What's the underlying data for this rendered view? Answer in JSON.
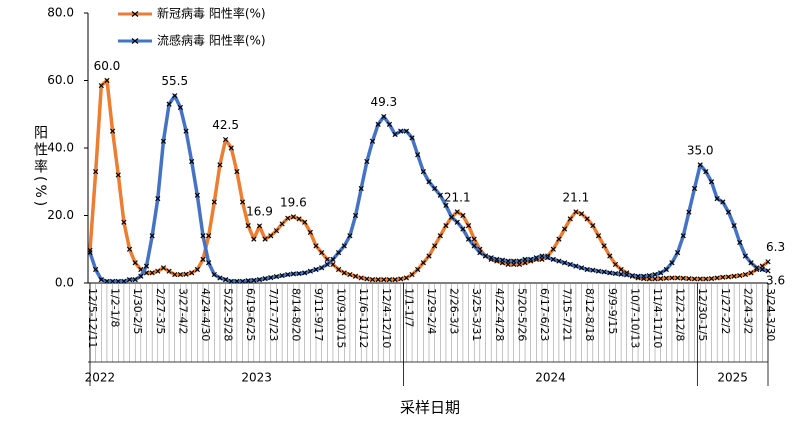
{
  "chart_data": {
    "type": "line",
    "x_label": "采样日期",
    "y_label": "阳性率(%)",
    "categories": [
      "12/5-12/11",
      null,
      null,
      null,
      "1/2-1/8",
      null,
      null,
      null,
      "1/30-2/5",
      null,
      null,
      null,
      "2/27-3/5",
      null,
      null,
      null,
      "3/27-4/2",
      null,
      null,
      null,
      "4/24-4/30",
      null,
      null,
      null,
      "5/22-5/28",
      null,
      null,
      null,
      "6/19-6/25",
      null,
      null,
      null,
      "7/17-7/23",
      null,
      null,
      null,
      "8/14-8/20",
      null,
      null,
      null,
      "9/11-9/17",
      null,
      null,
      null,
      "10/9-10/15",
      null,
      null,
      null,
      "11/6-11/12",
      null,
      null,
      null,
      "12/4-12/10",
      null,
      null,
      null,
      "1/1-1/7",
      null,
      null,
      null,
      "1/29-2/4",
      null,
      null,
      null,
      "2/26-3/3",
      null,
      null,
      null,
      "3/25-3/31",
      null,
      null,
      null,
      "4/22-4/28",
      null,
      null,
      null,
      "5/20-5/26",
      null,
      null,
      null,
      "6/17-6/23",
      null,
      null,
      null,
      "7/15-7/21",
      null,
      null,
      null,
      "8/12-8/18",
      null,
      null,
      null,
      "9/9-9/15",
      null,
      null,
      null,
      "10/7-10/13",
      null,
      null,
      null,
      "11/4-11/10",
      null,
      null,
      null,
      "12/2-12/8",
      null,
      null,
      null,
      "12/30-1/5",
      null,
      null,
      null,
      "1/27-2/2",
      null,
      null,
      null,
      "2/24-3/2",
      null,
      null,
      null,
      "3/24-3/30"
    ],
    "years": [
      "2022",
      "2023",
      "2024",
      "2025"
    ],
    "series": [
      {
        "name": "新冠病毒 阳性率(%)",
        "color": "#ED7D31",
        "values": [
          9.7,
          33,
          58.5,
          60,
          45,
          32,
          18,
          10,
          6,
          4,
          3,
          3,
          3.5,
          4.5,
          3.5,
          2.5,
          2.5,
          2.6,
          3,
          4,
          7,
          14,
          24,
          35,
          42.5,
          40,
          33,
          24,
          17,
          13,
          16.9,
          13,
          14,
          15.5,
          17.5,
          19.2,
          19.6,
          19,
          18,
          15,
          11,
          9,
          7,
          5.5,
          4,
          3,
          2.5,
          2,
          1.5,
          1.2,
          1,
          1,
          1,
          1,
          1,
          1.2,
          1.5,
          2.5,
          4,
          6,
          8,
          11,
          14,
          17,
          19.5,
          21.1,
          20,
          17,
          13,
          10,
          8,
          7,
          6.5,
          6,
          5.5,
          5.5,
          5.5,
          6,
          6.5,
          7,
          7,
          8,
          10,
          13,
          16,
          19,
          21.1,
          20.5,
          19,
          17,
          14,
          11,
          8,
          5.5,
          4,
          3,
          2,
          1.5,
          1.3,
          1.2,
          1.2,
          1.3,
          1.4,
          1.5,
          1.5,
          1.4,
          1.3,
          1.2,
          1.2,
          1.2,
          1.3,
          1.5,
          1.7,
          1.8,
          2,
          2.2,
          2.5,
          3,
          4,
          5,
          6.3
        ],
        "value_labels": [
          null,
          null,
          null,
          "60.0",
          null,
          null,
          null,
          null,
          null,
          null,
          null,
          null,
          null,
          null,
          null,
          null,
          null,
          null,
          null,
          null,
          null,
          null,
          null,
          null,
          "42.5",
          null,
          null,
          null,
          null,
          null,
          "16.9",
          null,
          null,
          null,
          null,
          null,
          "19.6",
          null,
          null,
          null,
          null,
          null,
          null,
          null,
          null,
          null,
          null,
          null,
          null,
          null,
          null,
          null,
          null,
          null,
          null,
          null,
          null,
          null,
          null,
          null,
          null,
          null,
          null,
          null,
          null,
          "21.1",
          null,
          null,
          null,
          null,
          null,
          null,
          null,
          null,
          null,
          null,
          null,
          null,
          null,
          null,
          null,
          null,
          null,
          null,
          null,
          null,
          "21.1",
          null,
          null,
          null,
          null,
          null,
          null,
          null,
          null,
          null,
          null,
          null,
          null,
          null,
          null,
          null,
          null,
          null,
          null,
          null,
          null,
          null,
          null,
          null,
          null,
          null,
          null,
          null,
          null,
          null,
          null,
          null,
          null,
          null,
          "6.3"
        ]
      },
      {
        "name": "流感病毒 阳性率(%)",
        "color": "#4472C4",
        "values": [
          9,
          4,
          1,
          0.5,
          0.5,
          0.5,
          0.5,
          1,
          1,
          2,
          5,
          14,
          25,
          42,
          53,
          55.5,
          52,
          45,
          36,
          26,
          14,
          6,
          2.5,
          1.5,
          1,
          0.5,
          0.5,
          0.5,
          0.7,
          0.8,
          1,
          1.3,
          1.6,
          1.9,
          2.2,
          2.5,
          2.7,
          2.8,
          3,
          3.5,
          4,
          4.5,
          5.5,
          7,
          9,
          11,
          14,
          20,
          28,
          36,
          42,
          47,
          49.3,
          47,
          44,
          45,
          45,
          43,
          38,
          33,
          30,
          28,
          26,
          23,
          19.5,
          18,
          16,
          13,
          11,
          9,
          8,
          7.5,
          7,
          6.8,
          6.5,
          6.5,
          6.5,
          7,
          7,
          7.5,
          8,
          7.5,
          7,
          6.5,
          6,
          5.5,
          5,
          4.5,
          4,
          3.8,
          3.5,
          3.3,
          3,
          2.8,
          2.6,
          2.4,
          2.2,
          2,
          2,
          2.2,
          2.5,
          3,
          4,
          6,
          9,
          14,
          21,
          28,
          35,
          33,
          30,
          25,
          24,
          21,
          17,
          12,
          8,
          6,
          4.5,
          4,
          3.6
        ],
        "value_labels": [
          null,
          null,
          null,
          null,
          null,
          null,
          null,
          null,
          null,
          null,
          null,
          null,
          null,
          null,
          null,
          "55.5",
          null,
          null,
          null,
          null,
          null,
          null,
          null,
          null,
          null,
          null,
          null,
          null,
          null,
          null,
          null,
          null,
          null,
          null,
          null,
          null,
          null,
          null,
          null,
          null,
          null,
          null,
          null,
          null,
          null,
          null,
          null,
          null,
          null,
          null,
          null,
          null,
          "49.3",
          null,
          null,
          null,
          null,
          null,
          null,
          null,
          null,
          null,
          null,
          null,
          null,
          null,
          null,
          null,
          null,
          null,
          null,
          null,
          null,
          null,
          null,
          null,
          null,
          null,
          null,
          null,
          null,
          null,
          null,
          null,
          null,
          null,
          null,
          null,
          null,
          null,
          null,
          null,
          null,
          null,
          null,
          null,
          null,
          null,
          null,
          null,
          null,
          null,
          null,
          null,
          null,
          null,
          null,
          null,
          "35.0",
          null,
          null,
          null,
          null,
          null,
          null,
          null,
          null,
          null,
          null,
          null,
          "3.6"
        ]
      }
    ],
    "ylim": [
      0,
      80
    ],
    "yticks": [
      {
        "value": 0,
        "label": "0.0"
      },
      {
        "value": 20,
        "label": "20.0"
      },
      {
        "value": 40,
        "label": "40.0"
      },
      {
        "value": 60,
        "label": "60.0"
      },
      {
        "value": 80,
        "label": "80.0"
      }
    ],
    "grid": false
  }
}
